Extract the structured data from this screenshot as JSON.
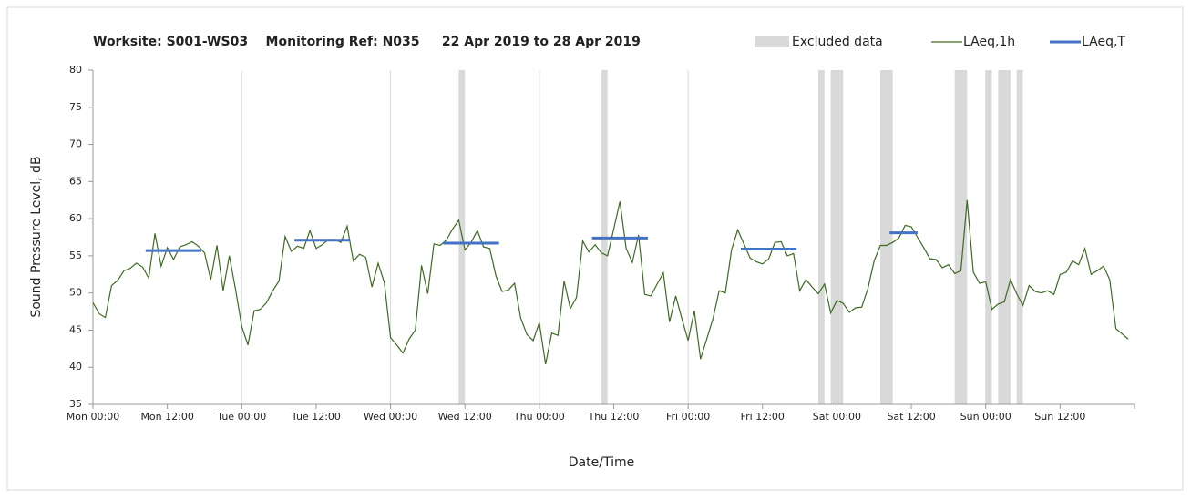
{
  "chart_data": {
    "type": "line",
    "title": "Worksite: S001-WS03    Monitoring Ref: N035     22 Apr 2019 to 28 Apr 2019",
    "xlabel": "Date/Time",
    "ylabel": "Sound Pressure Level, dB",
    "xlim": [
      0,
      168
    ],
    "ylim": [
      35,
      80
    ],
    "yticks": [
      35,
      40,
      45,
      50,
      55,
      60,
      65,
      70,
      75,
      80
    ],
    "xticks": [
      {
        "value": 0,
        "label": "Mon 00:00"
      },
      {
        "value": 12,
        "label": "Mon 12:00"
      },
      {
        "value": 24,
        "label": "Tue 00:00"
      },
      {
        "value": 36,
        "label": "Tue 12:00"
      },
      {
        "value": 48,
        "label": "Wed 00:00"
      },
      {
        "value": 60,
        "label": "Wed 12:00"
      },
      {
        "value": 72,
        "label": "Thu 00:00"
      },
      {
        "value": 84,
        "label": "Thu 12:00"
      },
      {
        "value": 96,
        "label": "Fri 00:00"
      },
      {
        "value": 108,
        "label": "Fri 12:00"
      },
      {
        "value": 120,
        "label": "Sat 00:00"
      },
      {
        "value": 132,
        "label": "Sat 12:00"
      },
      {
        "value": 144,
        "label": "Sun 00:00"
      },
      {
        "value": 156,
        "label": "Sun 12:00"
      }
    ],
    "grid": true,
    "x": [
      0,
      1,
      2,
      3,
      4,
      5,
      6,
      7,
      8,
      9,
      10,
      11,
      12,
      13,
      14,
      15,
      16,
      17,
      18,
      19,
      20,
      21,
      22,
      23,
      24,
      25,
      26,
      27,
      28,
      29,
      30,
      31,
      32,
      33,
      34,
      35,
      36,
      37,
      38,
      39,
      40,
      41,
      42,
      43,
      44,
      45,
      46,
      47,
      48,
      49,
      50,
      51,
      52,
      53,
      54,
      55,
      56,
      57,
      58,
      59,
      60,
      61,
      62,
      63,
      64,
      65,
      66,
      67,
      68,
      69,
      70,
      71,
      72,
      73,
      74,
      75,
      76,
      77,
      78,
      79,
      80,
      81,
      82,
      83,
      84,
      85,
      86,
      87,
      88,
      89,
      90,
      91,
      92,
      93,
      94,
      95,
      96,
      97,
      98,
      99,
      100,
      101,
      102,
      103,
      104,
      105,
      106,
      107,
      108,
      109,
      110,
      111,
      112,
      113,
      114,
      115,
      116,
      117,
      118,
      119,
      120,
      121,
      122,
      123,
      124,
      125,
      126,
      127,
      128,
      129,
      130,
      131,
      132,
      133,
      134,
      135,
      136,
      137,
      138,
      139,
      140,
      141,
      142,
      143,
      144,
      145,
      146,
      147,
      148,
      149,
      150,
      151,
      152,
      153,
      154,
      155,
      156,
      157,
      158,
      159,
      160,
      161,
      162,
      163,
      164,
      165,
      166,
      167
    ],
    "series": [
      {
        "name": "LAeq,1h",
        "color": "#3d6b21",
        "values": [
          48.7,
          47.2,
          46.7,
          51,
          51.7,
          53,
          53.3,
          54,
          53.5,
          52,
          58,
          53.6,
          56.1,
          54.5,
          56.2,
          56.5,
          56.9,
          56.3,
          55.4,
          51.8,
          56.4,
          50.3,
          55,
          50.5,
          45.5,
          43,
          47.6,
          47.8,
          48.7,
          50.3,
          51.6,
          57.6,
          55.6,
          56.3,
          56,
          58.4,
          56,
          56.5,
          57.2,
          57.2,
          56.8,
          59,
          54.3,
          55.2,
          54.8,
          50.8,
          54,
          51.4,
          44,
          43,
          41.9,
          43.8,
          45,
          53.7,
          49.9,
          56.6,
          56.4,
          57.1,
          58.6,
          59.8,
          55.8,
          56.8,
          58.4,
          56.2,
          56,
          52.3,
          50.2,
          50.4,
          51.3,
          46.6,
          44.4,
          43.6,
          46,
          40.4,
          44.6,
          44.3,
          51.6,
          47.9,
          49.4,
          57,
          55.5,
          56.5,
          55.4,
          55,
          58.6,
          62.3,
          56,
          54.1,
          57.8,
          49.8,
          49.6,
          51.2,
          52.7,
          46.1,
          49.6,
          46.5,
          43.6,
          47.6,
          41.1,
          43.8,
          46.5,
          50.3,
          50,
          55.8,
          58.5,
          56.6,
          54.7,
          54.2,
          53.9,
          54.6,
          56.8,
          56.9,
          55,
          55.3,
          50.3,
          51.8,
          50.8,
          49.9,
          51.2,
          47.3,
          49,
          48.6,
          47.4,
          48,
          48.1,
          50.6,
          54.3,
          56.4,
          56.4,
          56.8,
          57.4,
          59.1,
          58.9,
          57.5,
          56.1,
          54.6,
          54.5,
          53.4,
          53.8,
          52.6,
          53,
          62.5,
          52.8,
          51.3,
          51.5,
          47.8,
          48.5,
          48.8,
          51.8,
          49.9,
          48.3,
          51,
          50.2,
          50,
          50.3,
          49.8,
          52.5,
          52.8,
          54.3,
          53.8,
          56,
          52.5,
          53,
          53.6,
          51.8,
          45.2,
          44.5,
          43.8
        ]
      }
    ],
    "excluded": {
      "name": "Excluded data",
      "color": "#d9d9d9",
      "ranges": [
        [
          59,
          60
        ],
        [
          82,
          83
        ],
        [
          117,
          118
        ],
        [
          119,
          121
        ],
        [
          127,
          129
        ],
        [
          139,
          141
        ],
        [
          144,
          145
        ],
        [
          146,
          148
        ],
        [
          149,
          150
        ]
      ]
    },
    "laeq_t": {
      "name": "LAeq,T",
      "color": "#4472c4",
      "segments": [
        {
          "x": [
            8.5,
            17.5
          ],
          "value": 55.7
        },
        {
          "x": [
            32.5,
            41.5
          ],
          "value": 57.1
        },
        {
          "x": [
            56.5,
            65.5
          ],
          "value": 56.7
        },
        {
          "x": [
            80.5,
            89.5
          ],
          "value": 57.4
        },
        {
          "x": [
            104.5,
            113.5
          ],
          "value": 55.9
        },
        {
          "x": [
            128.5,
            133
          ],
          "value": 58.1
        }
      ]
    }
  }
}
